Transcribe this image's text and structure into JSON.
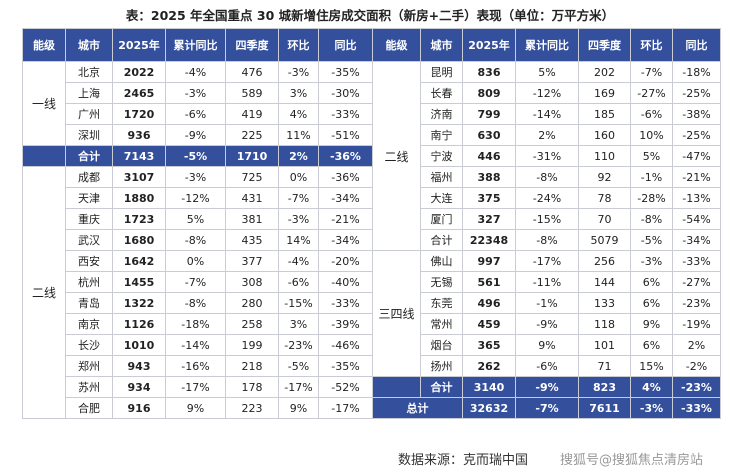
{
  "title": "表：2025 年全国重点 30 城新增住房成交面积（新房+二手）表现（单位：万平方米）",
  "tables": [
    {
      "header": [
        "能级",
        "城市",
        "2025年",
        "累计同比",
        "四季度",
        "环比",
        "同比"
      ],
      "blocks": [
        {
          "tier": "一线",
          "rows": [
            [
              "北京",
              "2022",
              "-4%",
              "476",
              "-3%",
              "-35%"
            ],
            [
              "上海",
              "2465",
              "-3%",
              "589",
              "3%",
              "-30%"
            ],
            [
              "广州",
              "1720",
              "-6%",
              "419",
              "4%",
              "-33%"
            ],
            [
              "深圳",
              "936",
              "-9%",
              "225",
              "11%",
              "-51%"
            ]
          ]
        },
        {
          "subtotal": [
            "合计",
            "7143",
            "-5%",
            "1710",
            "2%",
            "-36%"
          ]
        },
        {
          "tier": "二线",
          "rows": [
            [
              "成都",
              "3107",
              "-3%",
              "725",
              "0%",
              "-36%"
            ],
            [
              "天津",
              "1880",
              "-12%",
              "431",
              "-7%",
              "-34%"
            ],
            [
              "重庆",
              "1723",
              "5%",
              "381",
              "-3%",
              "-21%"
            ],
            [
              "武汉",
              "1680",
              "-8%",
              "435",
              "14%",
              "-34%"
            ],
            [
              "西安",
              "1642",
              "0%",
              "377",
              "-4%",
              "-20%"
            ],
            [
              "杭州",
              "1455",
              "-7%",
              "308",
              "-6%",
              "-40%"
            ],
            [
              "青岛",
              "1322",
              "-8%",
              "280",
              "-15%",
              "-33%"
            ],
            [
              "南京",
              "1126",
              "-18%",
              "258",
              "3%",
              "-39%"
            ],
            [
              "长沙",
              "1010",
              "-14%",
              "199",
              "-23%",
              "-46%"
            ],
            [
              "郑州",
              "943",
              "-16%",
              "218",
              "-5%",
              "-35%"
            ],
            [
              "苏州",
              "934",
              "-17%",
              "178",
              "-17%",
              "-52%"
            ],
            [
              "合肥",
              "916",
              "9%",
              "223",
              "9%",
              "-17%"
            ]
          ]
        }
      ]
    },
    {
      "header": [
        "能级",
        "城市",
        "2025年",
        "累计同比",
        "四季度",
        "环比",
        "同比"
      ],
      "blocks": [
        {
          "tier": "二线",
          "rows": [
            [
              "昆明",
              "836",
              "5%",
              "202",
              "-7%",
              "-18%"
            ],
            [
              "长春",
              "809",
              "-12%",
              "169",
              "-27%",
              "-25%"
            ],
            [
              "济南",
              "799",
              "-14%",
              "185",
              "-6%",
              "-38%"
            ],
            [
              "南宁",
              "630",
              "2%",
              "160",
              "10%",
              "-25%"
            ],
            [
              "宁波",
              "446",
              "-31%",
              "110",
              "5%",
              "-47%"
            ],
            [
              "福州",
              "388",
              "-8%",
              "92",
              "-1%",
              "-21%"
            ],
            [
              "大连",
              "375",
              "-24%",
              "78",
              "-28%",
              "-13%"
            ],
            [
              "厦门",
              "327",
              "-15%",
              "70",
              "-8%",
              "-54%"
            ],
            [
              "合计",
              "22348",
              "-8%",
              "5079",
              "-5%",
              "-34%"
            ]
          ]
        },
        {
          "tier": "三四线",
          "rows": [
            [
              "佛山",
              "997",
              "-17%",
              "256",
              "-3%",
              "-33%"
            ],
            [
              "无锡",
              "561",
              "-11%",
              "144",
              "6%",
              "-27%"
            ],
            [
              "东莞",
              "496",
              "-1%",
              "133",
              "6%",
              "-23%"
            ],
            [
              "常州",
              "459",
              "-9%",
              "118",
              "9%",
              "-19%"
            ],
            [
              "烟台",
              "365",
              "9%",
              "101",
              "6%",
              "2%"
            ],
            [
              "扬州",
              "262",
              "-6%",
              "71",
              "15%",
              "-2%"
            ]
          ]
        },
        {
          "subtotal": [
            "合计",
            "3140",
            "-9%",
            "823",
            "4%",
            "-23%"
          ]
        },
        {
          "grand_total": [
            "总计",
            "32632",
            "-7%",
            "7611",
            "-3%",
            "-33%"
          ]
        }
      ]
    }
  ],
  "source": "数据来源：克而瑞中国",
  "watermark": "搜狐号@搜狐焦点清房站"
}
